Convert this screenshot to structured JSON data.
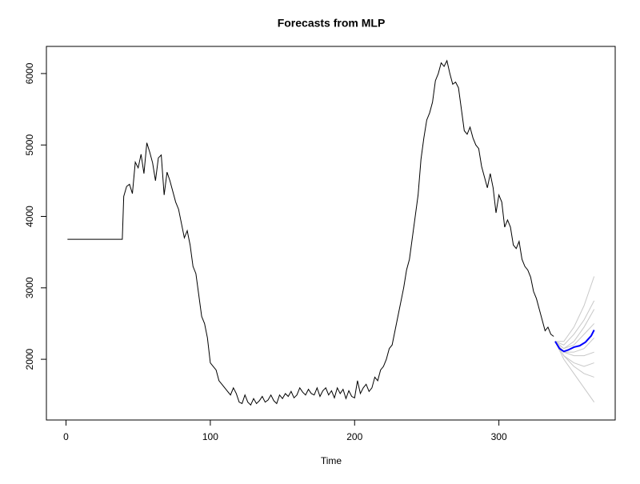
{
  "chart_data": {
    "type": "line",
    "title": "Forecasts from MLP",
    "xlabel": "Time",
    "xlim": [
      -13.6,
      380.6
    ],
    "ylim": [
      1150,
      6380
    ],
    "xticks": [
      0,
      100,
      200,
      300
    ],
    "yticks": [
      2000,
      3000,
      4000,
      5000,
      6000
    ],
    "series": [
      {
        "color": "#c8c8c8",
        "x": [
          339,
          345,
          352,
          359,
          366
        ],
        "values": [
          2250,
          2250,
          2450,
          2750,
          3160
        ]
      },
      {
        "color": "#c8c8c8",
        "x": [
          339,
          345,
          352,
          359,
          366
        ],
        "values": [
          2250,
          2200,
          2350,
          2550,
          2820
        ]
      },
      {
        "color": "#c8c8c8",
        "x": [
          339,
          345,
          352,
          359,
          366
        ],
        "values": [
          2250,
          2150,
          2250,
          2450,
          2700
        ]
      },
      {
        "color": "#c8c8c8",
        "x": [
          339,
          345,
          352,
          359,
          366
        ],
        "values": [
          2250,
          2150,
          2200,
          2350,
          2500
        ]
      },
      {
        "color": "#c8c8c8",
        "x": [
          339,
          345,
          352,
          359,
          366
        ],
        "values": [
          2250,
          2100,
          2100,
          2150,
          2300
        ]
      },
      {
        "color": "#c8c8c8",
        "x": [
          339,
          345,
          352,
          359,
          366
        ],
        "values": [
          2250,
          2100,
          2050,
          2050,
          2100
        ]
      },
      {
        "color": "#c8c8c8",
        "x": [
          339,
          345,
          352,
          359,
          366
        ],
        "values": [
          2250,
          2050,
          1950,
          1900,
          1950
        ]
      },
      {
        "color": "#c8c8c8",
        "x": [
          339,
          345,
          352,
          359,
          366
        ],
        "values": [
          2250,
          2050,
          1900,
          1800,
          1750
        ]
      },
      {
        "color": "#c8c8c8",
        "x": [
          339,
          345,
          352,
          359,
          366
        ],
        "values": [
          2250,
          2000,
          1800,
          1600,
          1400
        ]
      },
      {
        "color": "#000000",
        "x": [
          1,
          39,
          40,
          42,
          44,
          46,
          48,
          50,
          52,
          54,
          56,
          58,
          60,
          62,
          64,
          66,
          68,
          70,
          72,
          74,
          76,
          78,
          80,
          82,
          84,
          86,
          88,
          90,
          92,
          94,
          96,
          98,
          100,
          102,
          104,
          106,
          108,
          110,
          112,
          114,
          116,
          118,
          120,
          122,
          124,
          126,
          128,
          130,
          132,
          134,
          136,
          138,
          140,
          142,
          144,
          146,
          148,
          150,
          152,
          154,
          156,
          158,
          160,
          162,
          164,
          166,
          168,
          170,
          172,
          174,
          176,
          178,
          180,
          182,
          184,
          186,
          188,
          190,
          192,
          194,
          196,
          198,
          200,
          202,
          204,
          206,
          208,
          210,
          212,
          214,
          216,
          218,
          220,
          222,
          224,
          226,
          228,
          230,
          232,
          234,
          236,
          238,
          240,
          242,
          244,
          246,
          248,
          250,
          252,
          254,
          256,
          258,
          260,
          262,
          264,
          266,
          268,
          270,
          272,
          274,
          276,
          278,
          280,
          282,
          284,
          286,
          288,
          290,
          292,
          294,
          296,
          298,
          300,
          302,
          304,
          306,
          308,
          310,
          312,
          314,
          316,
          318,
          320,
          322,
          324,
          326,
          328,
          330,
          332,
          334,
          336,
          338
        ],
        "values": [
          3680,
          3680,
          4280,
          4420,
          4450,
          4320,
          4760,
          4680,
          4870,
          4600,
          5030,
          4900,
          4750,
          4500,
          4820,
          4860,
          4300,
          4620,
          4500,
          4350,
          4200,
          4100,
          3900,
          3700,
          3800,
          3600,
          3300,
          3200,
          2900,
          2600,
          2500,
          2300,
          1950,
          1900,
          1850,
          1700,
          1650,
          1600,
          1550,
          1500,
          1600,
          1520,
          1400,
          1380,
          1500,
          1400,
          1360,
          1450,
          1380,
          1420,
          1480,
          1400,
          1430,
          1500,
          1420,
          1380,
          1500,
          1450,
          1520,
          1480,
          1550,
          1460,
          1500,
          1600,
          1540,
          1500,
          1580,
          1520,
          1500,
          1600,
          1480,
          1560,
          1600,
          1500,
          1560,
          1460,
          1600,
          1520,
          1580,
          1450,
          1560,
          1480,
          1460,
          1700,
          1520,
          1600,
          1650,
          1550,
          1600,
          1750,
          1700,
          1850,
          1900,
          2000,
          2150,
          2200,
          2400,
          2600,
          2800,
          3000,
          3250,
          3400,
          3700,
          4000,
          4300,
          4800,
          5100,
          5350,
          5450,
          5600,
          5900,
          6000,
          6150,
          6100,
          6180,
          6000,
          5850,
          5880,
          5800,
          5500,
          5200,
          5150,
          5250,
          5100,
          5000,
          4950,
          4700,
          4550,
          4400,
          4600,
          4400,
          4050,
          4300,
          4200,
          3850,
          3950,
          3850,
          3600,
          3550,
          3650,
          3400,
          3300,
          3250,
          3150,
          2950,
          2850,
          2700,
          2550,
          2400,
          2450,
          2350,
          2320
        ]
      },
      {
        "color": "#0000ff",
        "x": [
          339,
          342,
          345,
          348,
          352,
          356,
          360,
          364,
          366
        ],
        "values": [
          2250,
          2150,
          2110,
          2130,
          2170,
          2190,
          2240,
          2330,
          2410
        ]
      }
    ]
  }
}
